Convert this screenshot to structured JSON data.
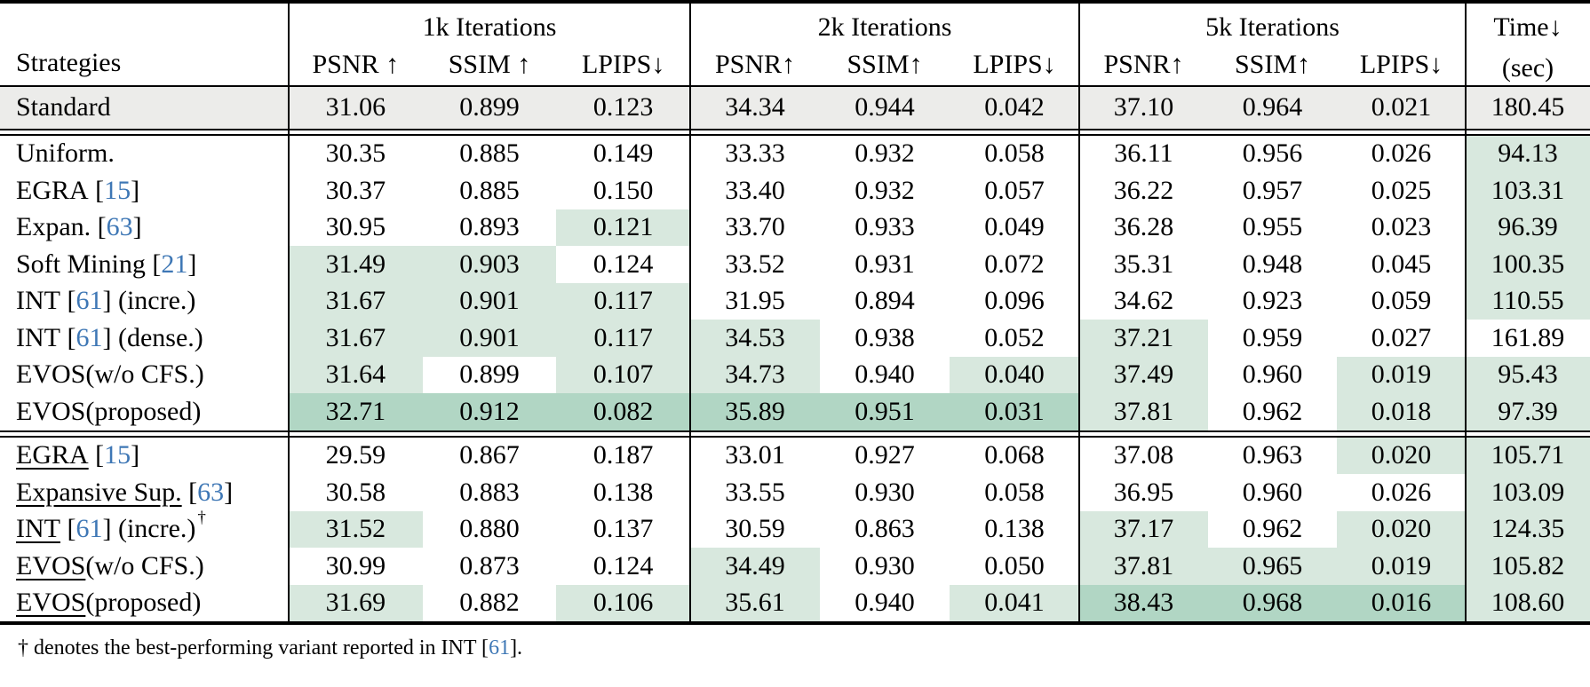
{
  "colors": {
    "highlight_light_green": "#d8e8de",
    "highlight_dark_green": "#b1d6c4",
    "standard_row_bg": "#ececea",
    "citation_blue": "#3e77b5"
  },
  "header": {
    "strategies": "Strategies",
    "groups": [
      {
        "label": "1k Iterations",
        "metrics": [
          "PSNR ↑",
          "SSIM ↑",
          "LPIPS↓"
        ]
      },
      {
        "label": "2k Iterations",
        "metrics": [
          "PSNR↑",
          "SSIM↑",
          "LPIPS↓"
        ]
      },
      {
        "label": "5k Iterations",
        "metrics": [
          "PSNR↑",
          "SSIM↑",
          "LPIPS↓"
        ]
      }
    ],
    "time": {
      "label": "Time↓",
      "unit": "(sec)"
    }
  },
  "rows": {
    "standard": {
      "head": "Standard",
      "cite": "",
      "tail": "",
      "u": false,
      "dag": false,
      "cells": [
        [
          "31.06",
          ""
        ],
        [
          "0.899",
          ""
        ],
        [
          "0.123",
          ""
        ],
        [
          "34.34",
          ""
        ],
        [
          "0.944",
          ""
        ],
        [
          "0.042",
          ""
        ],
        [
          "37.10",
          ""
        ],
        [
          "0.964",
          ""
        ],
        [
          "0.021",
          ""
        ],
        [
          "180.45",
          ""
        ]
      ]
    },
    "section1": [
      {
        "head": "Uniform.",
        "cite": "",
        "tail": "",
        "u": false,
        "dag": false,
        "cells": [
          [
            "30.35",
            ""
          ],
          [
            "0.885",
            ""
          ],
          [
            "0.149",
            ""
          ],
          [
            "33.33",
            ""
          ],
          [
            "0.932",
            ""
          ],
          [
            "0.058",
            ""
          ],
          [
            "36.11",
            ""
          ],
          [
            "0.956",
            ""
          ],
          [
            "0.026",
            ""
          ],
          [
            "94.13",
            "L"
          ]
        ]
      },
      {
        "head": "EGRA",
        "cite": "15",
        "tail": "",
        "u": false,
        "dag": false,
        "cells": [
          [
            "30.37",
            ""
          ],
          [
            "0.885",
            ""
          ],
          [
            "0.150",
            ""
          ],
          [
            "33.40",
            ""
          ],
          [
            "0.932",
            ""
          ],
          [
            "0.057",
            ""
          ],
          [
            "36.22",
            ""
          ],
          [
            "0.957",
            ""
          ],
          [
            "0.025",
            ""
          ],
          [
            "103.31",
            "L"
          ]
        ]
      },
      {
        "head": "Expan.",
        "cite": "63",
        "tail": "",
        "u": false,
        "dag": false,
        "cells": [
          [
            "30.95",
            ""
          ],
          [
            "0.893",
            ""
          ],
          [
            "0.121",
            "L"
          ],
          [
            "33.70",
            ""
          ],
          [
            "0.933",
            ""
          ],
          [
            "0.049",
            ""
          ],
          [
            "36.28",
            ""
          ],
          [
            "0.955",
            ""
          ],
          [
            "0.023",
            ""
          ],
          [
            "96.39",
            "L"
          ]
        ]
      },
      {
        "head": "Soft Mining",
        "cite": "21",
        "tail": "",
        "u": false,
        "dag": false,
        "cells": [
          [
            "31.49",
            "L"
          ],
          [
            "0.903",
            "L"
          ],
          [
            "0.124",
            ""
          ],
          [
            "33.52",
            ""
          ],
          [
            "0.931",
            ""
          ],
          [
            "0.072",
            ""
          ],
          [
            "35.31",
            ""
          ],
          [
            "0.948",
            ""
          ],
          [
            "0.045",
            ""
          ],
          [
            "100.35",
            "L"
          ]
        ]
      },
      {
        "head": "INT",
        "cite": "61",
        "tail": " (incre.)",
        "u": false,
        "dag": false,
        "cells": [
          [
            "31.67",
            "L"
          ],
          [
            "0.901",
            "L"
          ],
          [
            "0.117",
            "L"
          ],
          [
            "31.95",
            ""
          ],
          [
            "0.894",
            ""
          ],
          [
            "0.096",
            ""
          ],
          [
            "34.62",
            ""
          ],
          [
            "0.923",
            ""
          ],
          [
            "0.059",
            ""
          ],
          [
            "110.55",
            "L"
          ]
        ]
      },
      {
        "head": "INT",
        "cite": "61",
        "tail": " (dense.)",
        "u": false,
        "dag": false,
        "cells": [
          [
            "31.67",
            "L"
          ],
          [
            "0.901",
            "L"
          ],
          [
            "0.117",
            "L"
          ],
          [
            "34.53",
            "L"
          ],
          [
            "0.938",
            ""
          ],
          [
            "0.052",
            ""
          ],
          [
            "37.21",
            "L"
          ],
          [
            "0.959",
            ""
          ],
          [
            "0.027",
            ""
          ],
          [
            "161.89",
            ""
          ]
        ]
      },
      {
        "head": "EVOS",
        "cite": "",
        "tail": " (w/o CFS.)",
        "u": false,
        "dag": false,
        "cells": [
          [
            "31.64",
            "L"
          ],
          [
            "0.899",
            ""
          ],
          [
            "0.107",
            "L"
          ],
          [
            "34.73",
            "L"
          ],
          [
            "0.940",
            ""
          ],
          [
            "0.040",
            "L"
          ],
          [
            "37.49",
            "L"
          ],
          [
            "0.960",
            ""
          ],
          [
            "0.019",
            "L"
          ],
          [
            "95.43",
            "L"
          ]
        ]
      },
      {
        "head": "EVOS",
        "cite": "",
        "tail": " (proposed)",
        "u": false,
        "dag": false,
        "cells": [
          [
            "32.71",
            "D"
          ],
          [
            "0.912",
            "D"
          ],
          [
            "0.082",
            "D"
          ],
          [
            "35.89",
            "D"
          ],
          [
            "0.951",
            "D"
          ],
          [
            "0.031",
            "D"
          ],
          [
            "37.81",
            "L"
          ],
          [
            "0.962",
            ""
          ],
          [
            "0.018",
            "L"
          ],
          [
            "97.39",
            "L"
          ]
        ]
      }
    ],
    "section2": [
      {
        "head": "EGRA",
        "cite": "15",
        "tail": "",
        "u": true,
        "dag": false,
        "cells": [
          [
            "29.59",
            ""
          ],
          [
            "0.867",
            ""
          ],
          [
            "0.187",
            ""
          ],
          [
            "33.01",
            ""
          ],
          [
            "0.927",
            ""
          ],
          [
            "0.068",
            ""
          ],
          [
            "37.08",
            ""
          ],
          [
            "0.963",
            ""
          ],
          [
            "0.020",
            "L"
          ],
          [
            "105.71",
            "L"
          ]
        ]
      },
      {
        "head": "Expansive Sup.",
        "cite": "63",
        "tail": "",
        "u": true,
        "dag": false,
        "cells": [
          [
            "30.58",
            ""
          ],
          [
            "0.883",
            ""
          ],
          [
            "0.138",
            ""
          ],
          [
            "33.55",
            ""
          ],
          [
            "0.930",
            ""
          ],
          [
            "0.058",
            ""
          ],
          [
            "36.95",
            ""
          ],
          [
            "0.960",
            ""
          ],
          [
            "0.026",
            ""
          ],
          [
            "103.09",
            "L"
          ]
        ]
      },
      {
        "head": "INT",
        "cite": "61",
        "tail": " (incre.)",
        "u": true,
        "dag": true,
        "cells": [
          [
            "31.52",
            "L"
          ],
          [
            "0.880",
            ""
          ],
          [
            "0.137",
            ""
          ],
          [
            "30.59",
            ""
          ],
          [
            "0.863",
            ""
          ],
          [
            "0.138",
            ""
          ],
          [
            "37.17",
            "L"
          ],
          [
            "0.962",
            ""
          ],
          [
            "0.020",
            "L"
          ],
          [
            "124.35",
            "L"
          ]
        ]
      },
      {
        "head": "EVOS",
        "cite": "",
        "tail": " (w/o CFS.)",
        "u": true,
        "dag": false,
        "cells": [
          [
            "30.99",
            ""
          ],
          [
            "0.873",
            ""
          ],
          [
            "0.124",
            ""
          ],
          [
            "34.49",
            "L"
          ],
          [
            "0.930",
            ""
          ],
          [
            "0.050",
            ""
          ],
          [
            "37.81",
            "L"
          ],
          [
            "0.965",
            "L"
          ],
          [
            "0.019",
            "L"
          ],
          [
            "105.82",
            "L"
          ]
        ]
      },
      {
        "head": "EVOS",
        "cite": "",
        "tail": " (proposed)",
        "u": true,
        "dag": false,
        "cells": [
          [
            "31.69",
            "L"
          ],
          [
            "0.882",
            ""
          ],
          [
            "0.106",
            "L"
          ],
          [
            "35.61",
            "L"
          ],
          [
            "0.940",
            ""
          ],
          [
            "0.041",
            "L"
          ],
          [
            "38.43",
            "D"
          ],
          [
            "0.968",
            "D"
          ],
          [
            "0.016",
            "D"
          ],
          [
            "108.60",
            "L"
          ]
        ]
      }
    ]
  },
  "footnote": {
    "prefix": "† denotes the best-performing variant reported in INT [",
    "cite": "61",
    "suffix": "]."
  }
}
